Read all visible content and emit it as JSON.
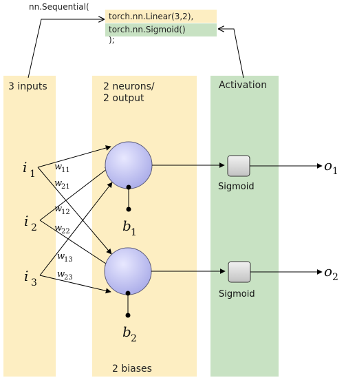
{
  "code": {
    "line1": "nn.Sequential(",
    "line2": "torch.nn.Linear(3,2),",
    "line3": "torch.nn.Sigmoid()",
    "line4": ");"
  },
  "columns": {
    "inputs": "3 inputs",
    "neurons_line1": "2 neurons/",
    "neurons_line2": "2 output",
    "activation": "Activation",
    "biases": "2 biases"
  },
  "inputs": [
    {
      "sym": "i",
      "sub": "1"
    },
    {
      "sym": "i",
      "sub": "2"
    },
    {
      "sym": "i",
      "sub": "3"
    }
  ],
  "weights": [
    {
      "sym": "w",
      "sub": "11"
    },
    {
      "sym": "w",
      "sub": "21"
    },
    {
      "sym": "w",
      "sub": "12"
    },
    {
      "sym": "w",
      "sub": "22"
    },
    {
      "sym": "w",
      "sub": "13"
    },
    {
      "sym": "w",
      "sub": "23"
    }
  ],
  "biases": [
    {
      "sym": "b",
      "sub": "1"
    },
    {
      "sym": "b",
      "sub": "2"
    }
  ],
  "activations": [
    "Sigmoid",
    "Sigmoid"
  ],
  "outputs": [
    {
      "sym": "o",
      "sub": "1"
    },
    {
      "sym": "o",
      "sub": "2"
    }
  ],
  "colors": {
    "band_yellow": "#fdeec2",
    "band_green": "#c8e2c3",
    "code_yellow": "#fdeec2",
    "code_green": "#c8e2c3",
    "neuron_fill": "#c7c8f2",
    "neuron_stroke": "#555577",
    "sigmoid_fill": "#d6d6d6"
  }
}
